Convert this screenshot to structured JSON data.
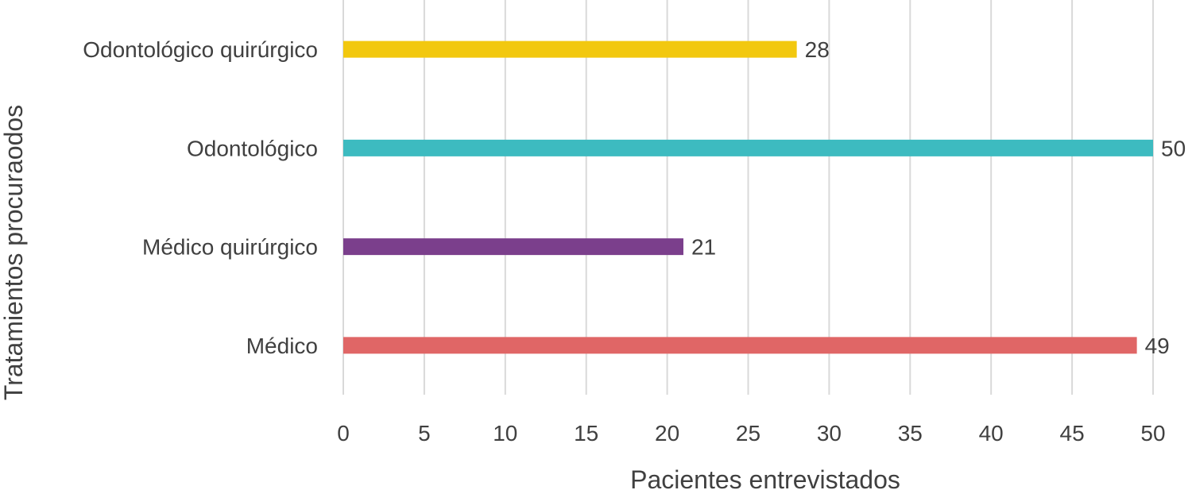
{
  "chart_data": {
    "type": "bar",
    "orientation": "horizontal",
    "categories": [
      "Médico",
      "Médico quirúrgico",
      "Odontológico",
      "Odontológico quirúrgico"
    ],
    "values": [
      49,
      21,
      50,
      28
    ],
    "colors": [
      "#e06666",
      "#7b3f8c",
      "#3dbbc0",
      "#f2c80f"
    ],
    "xlabel": "Pacientes entrevistados",
    "ylabel": "Tratamientos procuraodos",
    "xlim": [
      0,
      50
    ],
    "xticks": [
      0,
      5,
      10,
      15,
      20,
      25,
      30,
      35,
      40,
      45,
      50
    ],
    "grid": "vertical",
    "data_labels": true
  }
}
